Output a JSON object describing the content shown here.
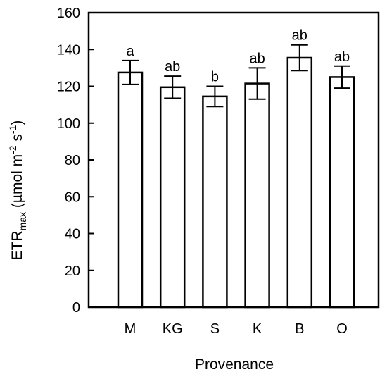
{
  "chart_data": {
    "type": "bar",
    "categories": [
      "M",
      "KG",
      "S",
      "K",
      "B",
      "O"
    ],
    "values": [
      127.5,
      119.5,
      114.5,
      121.5,
      135.5,
      125.0
    ],
    "errors": [
      6.5,
      6.0,
      5.5,
      8.5,
      7.0,
      6.0
    ],
    "significance_letters": [
      "a",
      "ab",
      "b",
      "ab",
      "ab",
      "ab"
    ],
    "xlabel": "Provenance",
    "ylabel": {
      "main": "ETR",
      "subscript": "max",
      "units_prefix": " (µmol m",
      "units_exp1": "-2",
      "units_mid": " s",
      "units_exp2": "-1",
      "units_suffix": ")"
    },
    "ylim": [
      0,
      160
    ],
    "yticks": [
      0,
      20,
      40,
      60,
      80,
      100,
      120,
      140,
      160
    ],
    "ytick_labels": [
      "0",
      "20",
      "40",
      "60",
      "80",
      "100",
      "120",
      "140",
      "160"
    ],
    "grid": false,
    "bar_fill": "#ffffff",
    "bar_stroke": "#000000"
  }
}
